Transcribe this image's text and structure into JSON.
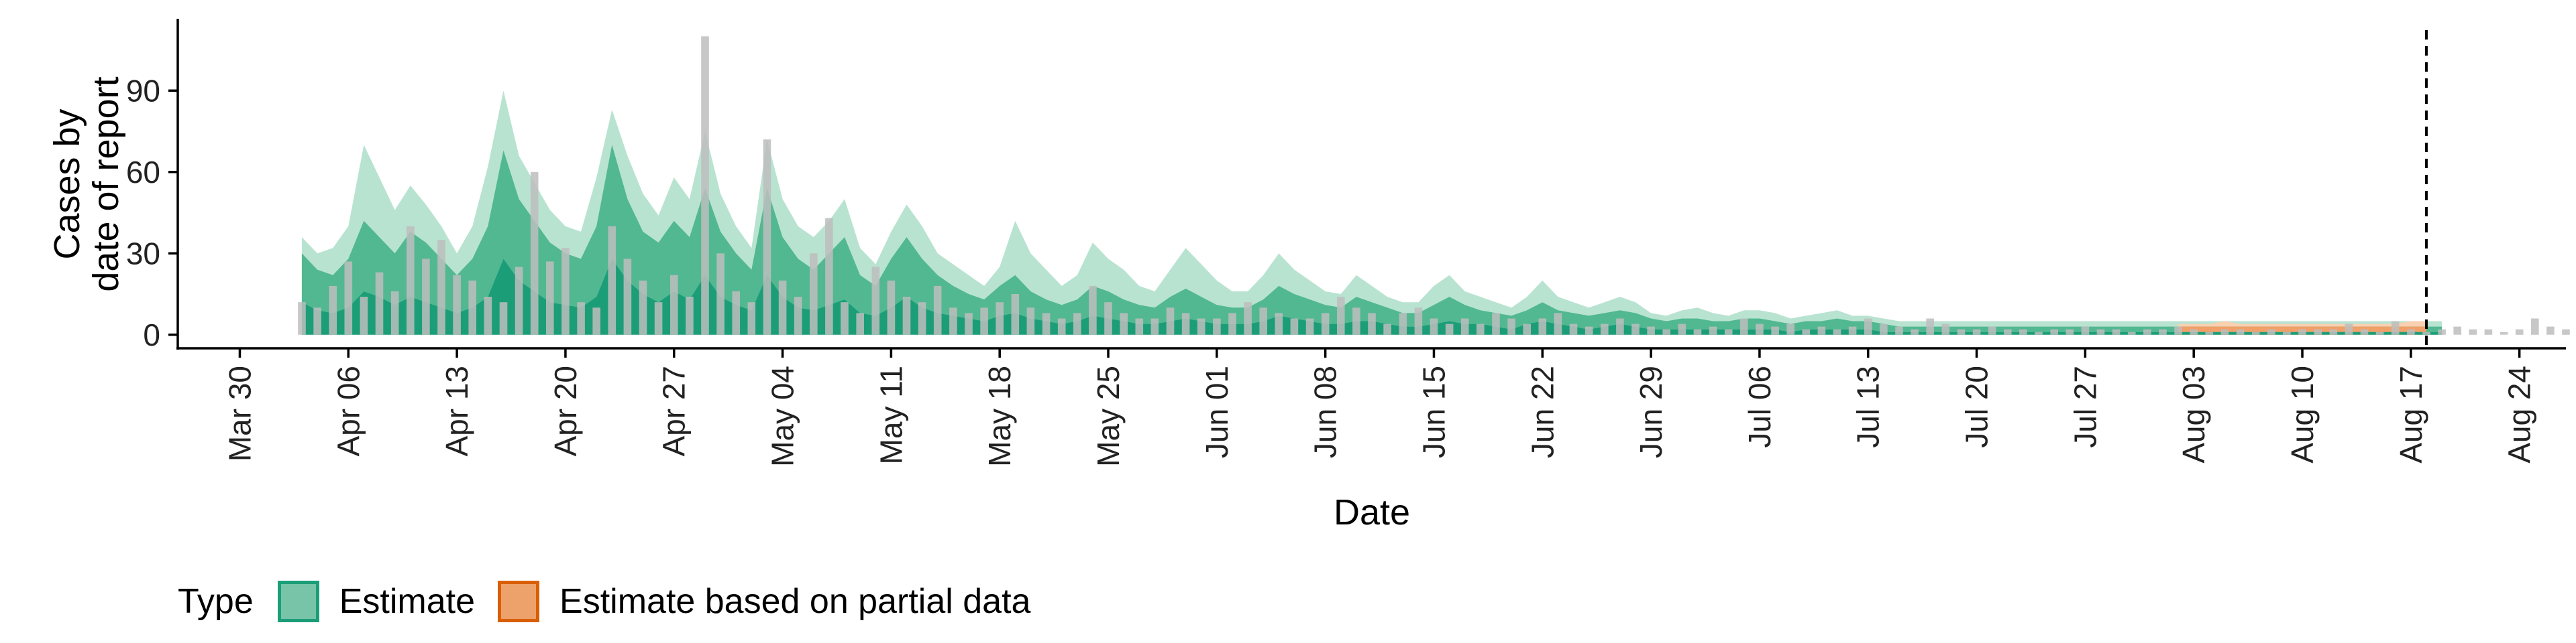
{
  "chart_data": {
    "type": "area",
    "xlabel": "Date",
    "ylabel_lines": [
      "Cases by",
      "date of report"
    ],
    "yticks": [
      0,
      30,
      60,
      90
    ],
    "ylim": [
      -5,
      116
    ],
    "xlim": [
      "2020-03-26",
      "2020-08-27"
    ],
    "xticks": [
      {
        "date": "2020-03-30",
        "label": "Mar 30"
      },
      {
        "date": "2020-04-06",
        "label": "Apr 06"
      },
      {
        "date": "2020-04-13",
        "label": "Apr 13"
      },
      {
        "date": "2020-04-20",
        "label": "Apr 20"
      },
      {
        "date": "2020-04-27",
        "label": "Apr 27"
      },
      {
        "date": "2020-05-04",
        "label": "May 04"
      },
      {
        "date": "2020-05-11",
        "label": "May 11"
      },
      {
        "date": "2020-05-18",
        "label": "May 18"
      },
      {
        "date": "2020-05-25",
        "label": "May 25"
      },
      {
        "date": "2020-06-01",
        "label": "Jun 01"
      },
      {
        "date": "2020-06-08",
        "label": "Jun 08"
      },
      {
        "date": "2020-06-15",
        "label": "Jun 15"
      },
      {
        "date": "2020-06-22",
        "label": "Jun 22"
      },
      {
        "date": "2020-06-29",
        "label": "Jun 29"
      },
      {
        "date": "2020-07-06",
        "label": "Jul 06"
      },
      {
        "date": "2020-07-13",
        "label": "Jul 13"
      },
      {
        "date": "2020-07-20",
        "label": "Jul 20"
      },
      {
        "date": "2020-07-27",
        "label": "Jul 27"
      },
      {
        "date": "2020-08-03",
        "label": "Aug 03"
      },
      {
        "date": "2020-08-10",
        "label": "Aug 10"
      },
      {
        "date": "2020-08-17",
        "label": "Aug 17"
      },
      {
        "date": "2020-08-24",
        "label": "Aug 24"
      }
    ],
    "vline_date": "2020-08-18",
    "grid": false,
    "legend_position": "bottom-left",
    "colors": {
      "estimate_outer": "#b9e3d1",
      "estimate_inner": "#52b891",
      "estimate_core": "#1b9e77",
      "partial_outer": "#f9d0b0",
      "partial_inner": "#f0a068",
      "bars": "#bdbdbd"
    },
    "reported_cases": {
      "start_date": "2020-04-03",
      "values": [
        12,
        10,
        18,
        27,
        14,
        23,
        16,
        40,
        28,
        35,
        22,
        20,
        14,
        12,
        25,
        60,
        27,
        32,
        12,
        10,
        40,
        28,
        20,
        12,
        22,
        14,
        110,
        30,
        16,
        12,
        72,
        20,
        14,
        30,
        43,
        12,
        8,
        25,
        20,
        14,
        12,
        18,
        10,
        8,
        10,
        12,
        15,
        10,
        8,
        6,
        8,
        18,
        12,
        8,
        6,
        6,
        10,
        8,
        6,
        6,
        8,
        12,
        10,
        8,
        6,
        6,
        8,
        14,
        10,
        8,
        4,
        8,
        10,
        6,
        4,
        6,
        4,
        8,
        6,
        4,
        6,
        8,
        4,
        3,
        4,
        6,
        4,
        3,
        2,
        4,
        2,
        3,
        2,
        6,
        4,
        3,
        4,
        2,
        3,
        2,
        3,
        6,
        4,
        3,
        2,
        6,
        4,
        2,
        2,
        3,
        2,
        2,
        1,
        2,
        2,
        3,
        2,
        2,
        1,
        2,
        2,
        3,
        2,
        1,
        2,
        2,
        1,
        2,
        1,
        2,
        2,
        2,
        4,
        2,
        1,
        5,
        2,
        1,
        2,
        3,
        2,
        2,
        1,
        2,
        6,
        3,
        2,
        1,
        2,
        2,
        4,
        2,
        1,
        1,
        2,
        2
      ]
    },
    "series": [
      {
        "name": "Estimate",
        "start_date": "2020-04-03",
        "median": [
          20,
          15,
          14,
          18,
          28,
          24,
          20,
          26,
          22,
          18,
          14,
          18,
          26,
          48,
          34,
          28,
          22,
          20,
          18,
          26,
          48,
          34,
          26,
          22,
          28,
          24,
          38,
          26,
          20,
          16,
          38,
          24,
          18,
          16,
          20,
          24,
          14,
          12,
          18,
          24,
          18,
          14,
          12,
          10,
          8,
          12,
          14,
          10,
          8,
          7,
          8,
          12,
          10,
          8,
          7,
          6,
          9,
          11,
          9,
          7,
          6,
          6,
          8,
          12,
          10,
          8,
          7,
          6,
          9,
          8,
          6,
          5,
          5,
          7,
          9,
          7,
          6,
          5,
          4,
          6,
          8,
          6,
          5,
          4,
          5,
          6,
          5,
          4,
          3,
          4,
          4,
          3,
          3,
          4,
          4,
          3,
          2,
          3,
          3,
          4,
          3,
          3,
          2,
          2,
          2,
          2,
          2,
          2,
          2,
          2,
          2,
          2,
          2,
          2,
          2,
          2,
          2,
          2,
          2,
          2,
          2,
          2,
          2,
          2,
          2,
          2,
          2,
          2,
          2,
          2,
          2,
          2,
          2,
          2,
          2,
          2,
          2,
          2,
          2
        ],
        "lower50": [
          12,
          9,
          8,
          10,
          16,
          14,
          11,
          14,
          12,
          10,
          8,
          10,
          14,
          28,
          20,
          16,
          12,
          11,
          10,
          14,
          28,
          20,
          15,
          12,
          16,
          13,
          22,
          14,
          11,
          9,
          22,
          14,
          10,
          9,
          11,
          13,
          8,
          7,
          10,
          14,
          10,
          8,
          7,
          6,
          5,
          7,
          8,
          6,
          5,
          4,
          5,
          7,
          6,
          5,
          4,
          4,
          5,
          6,
          5,
          4,
          4,
          4,
          5,
          7,
          6,
          5,
          4,
          4,
          5,
          5,
          4,
          3,
          3,
          4,
          5,
          4,
          4,
          3,
          2,
          4,
          5,
          4,
          3,
          2,
          3,
          4,
          3,
          2,
          2,
          2,
          2,
          2,
          2,
          2,
          2,
          2,
          1,
          2,
          2,
          2,
          2,
          2,
          1,
          1,
          1,
          1,
          1,
          1,
          1,
          1,
          1,
          1,
          1,
          1,
          1,
          1,
          1,
          1,
          1,
          1,
          1,
          1,
          1,
          1,
          1,
          1,
          1,
          1,
          1,
          1,
          1,
          1,
          1,
          1,
          1,
          1,
          1,
          1,
          1
        ],
        "upper50": [
          30,
          24,
          22,
          28,
          42,
          36,
          30,
          38,
          34,
          28,
          22,
          28,
          40,
          68,
          50,
          42,
          34,
          30,
          28,
          40,
          70,
          50,
          38,
          34,
          42,
          36,
          54,
          38,
          30,
          24,
          54,
          36,
          28,
          24,
          30,
          36,
          22,
          18,
          28,
          36,
          28,
          22,
          18,
          15,
          13,
          18,
          22,
          16,
          13,
          11,
          13,
          18,
          16,
          13,
          11,
          10,
          14,
          17,
          14,
          11,
          10,
          10,
          13,
          18,
          15,
          13,
          11,
          10,
          14,
          12,
          10,
          8,
          8,
          11,
          14,
          11,
          9,
          8,
          7,
          9,
          12,
          9,
          8,
          7,
          8,
          9,
          8,
          6,
          5,
          6,
          6,
          5,
          5,
          6,
          6,
          5,
          4,
          5,
          5,
          6,
          5,
          5,
          4,
          3,
          3,
          3,
          3,
          3,
          3,
          3,
          3,
          3,
          3,
          3,
          3,
          3,
          3,
          3,
          3,
          3,
          3,
          3,
          3,
          3,
          3,
          3,
          3,
          3,
          3,
          3,
          3,
          3,
          3,
          3,
          3,
          3,
          3,
          3,
          3
        ],
        "upper90": [
          36,
          30,
          32,
          40,
          70,
          58,
          46,
          55,
          48,
          40,
          30,
          40,
          62,
          90,
          66,
          56,
          46,
          40,
          38,
          58,
          83,
          66,
          52,
          44,
          58,
          50,
          75,
          52,
          40,
          32,
          72,
          50,
          40,
          36,
          42,
          50,
          32,
          26,
          38,
          48,
          40,
          30,
          26,
          22,
          18,
          25,
          42,
          30,
          24,
          18,
          22,
          34,
          28,
          24,
          18,
          16,
          24,
          32,
          26,
          20,
          16,
          16,
          22,
          30,
          24,
          20,
          16,
          15,
          22,
          18,
          14,
          12,
          12,
          18,
          22,
          16,
          14,
          12,
          10,
          14,
          20,
          14,
          12,
          10,
          12,
          14,
          12,
          8,
          7,
          9,
          10,
          8,
          7,
          9,
          9,
          8,
          6,
          7,
          8,
          9,
          7,
          7,
          6,
          5,
          5,
          5,
          5,
          5,
          5,
          5,
          5,
          5,
          5,
          5,
          5,
          5,
          5,
          5,
          5,
          5,
          5,
          5,
          5,
          5,
          5,
          5,
          5,
          5,
          5,
          5,
          5,
          5,
          5,
          5,
          5,
          5,
          5,
          5,
          5
        ]
      },
      {
        "name": "Estimate based on partial data",
        "start_date": "2020-08-02",
        "median": [
          2,
          2,
          2,
          2,
          2,
          2,
          2,
          2,
          2,
          2,
          2,
          2,
          2,
          2,
          2,
          2,
          2
        ],
        "lower50": [
          1,
          1,
          1,
          1,
          1,
          1,
          1,
          1,
          1,
          1,
          1,
          1,
          1,
          1,
          1,
          1,
          1
        ],
        "upper50": [
          3,
          3,
          3,
          3,
          3,
          3,
          3,
          3,
          3,
          3,
          3,
          3,
          3,
          3,
          3,
          3,
          3
        ],
        "upper90": [
          4,
          4,
          4,
          5,
          4,
          4,
          4,
          4,
          4,
          4,
          4,
          4,
          4,
          4,
          4,
          5,
          5
        ]
      }
    ]
  },
  "legend": {
    "title": "Type",
    "items": [
      "Estimate",
      "Estimate based on partial data"
    ]
  }
}
